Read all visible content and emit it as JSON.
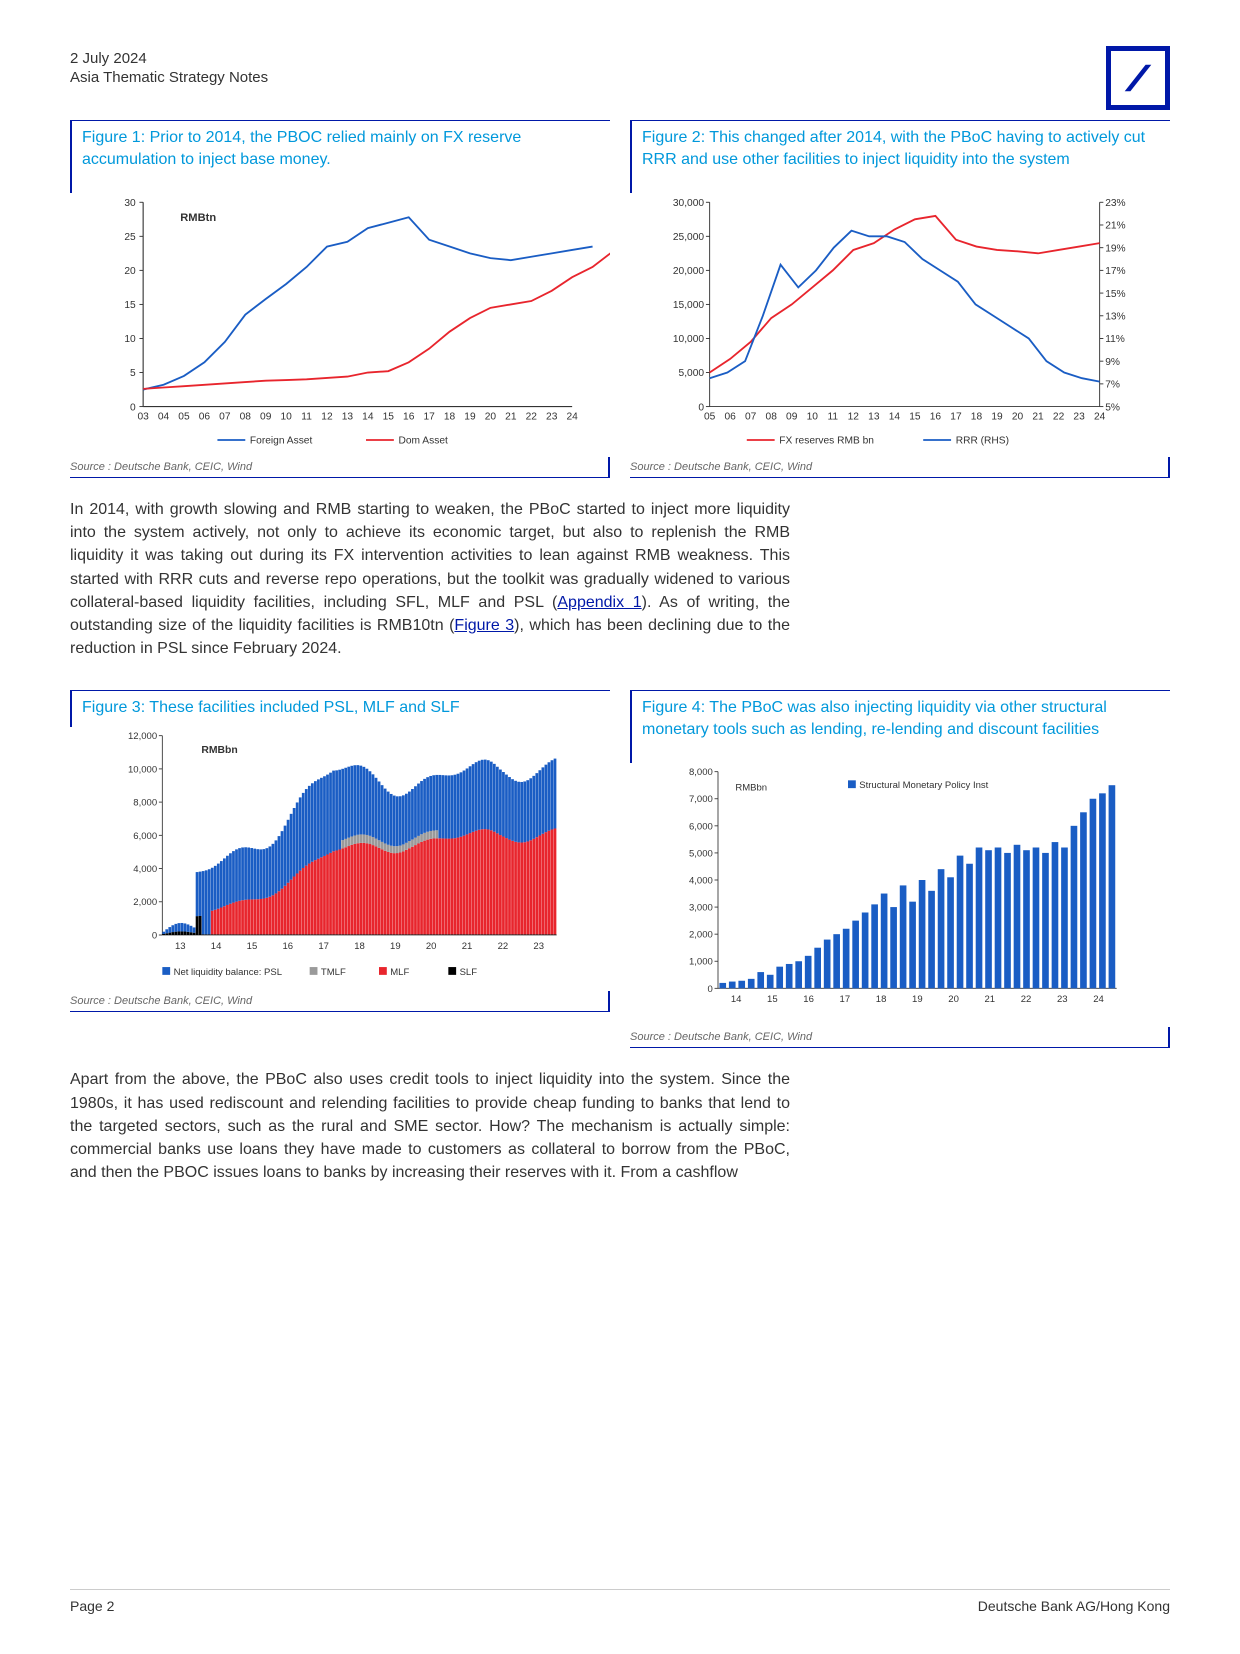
{
  "header": {
    "date": "2 July 2024",
    "subtitle": "Asia Thematic Strategy Notes"
  },
  "footer": {
    "page": "Page 2",
    "entity": "Deutsche Bank AG/Hong Kong"
  },
  "paragraph1": "In 2014, with growth slowing and RMB starting to weaken, the PBoC started to inject more liquidity into the system actively, not only to achieve its economic target, but also to replenish the RMB liquidity it was taking out during its FX intervention activities to lean against RMB weakness. This started with RRR cuts and reverse repo operations, but the toolkit was gradually widened to various collateral-based liquidity facilities, including SFL, MLF and PSL (",
  "paragraph1_link1": "Appendix 1",
  "paragraph1_mid": "). As of writing, the outstanding size of the liquidity facilities is RMB10tn (",
  "paragraph1_link2": "Figure 3",
  "paragraph1_end": "), which has been declining due to the reduction in PSL since February 2024.",
  "paragraph2": "Apart from the above, the PBoC also uses credit tools to inject liquidity into the system. Since the 1980s, it has used rediscount and relending facilities to provide cheap funding to banks that lend to the targeted sectors, such as the rural and SME sector. How? The mechanism is actually simple: commercial banks use loans they have made to customers as collateral to borrow from the PBoC, and then the PBOC issues loans to banks by increasing their reserves with it. From a cashflow",
  "source_label": "Source : Deutsche Bank, CEIC, Wind",
  "colors": {
    "blue_line": "#1a5dc4",
    "red_line": "#e8252d",
    "axis": "#333333",
    "grid": "#cccccc",
    "db_blue": "#0018a8",
    "cyan": "#0098db",
    "bar_blue": "#1a5dc4",
    "bar_red": "#e8252d",
    "bar_grey": "#9a9a9a",
    "bar_black": "#000000"
  },
  "figure1": {
    "title": "Figure 1: Prior to 2014, the PBOC relied mainly on FX reserve accumulation to inject base money.",
    "unit": "RMBtn",
    "ylim": [
      0,
      30
    ],
    "ytick_step": 5,
    "x_labels": [
      "03",
      "04",
      "05",
      "06",
      "07",
      "08",
      "09",
      "10",
      "11",
      "12",
      "13",
      "14",
      "15",
      "16",
      "17",
      "18",
      "19",
      "20",
      "21",
      "22",
      "23",
      "24"
    ],
    "legend": [
      "Foreign Asset",
      "Dom Asset"
    ],
    "series_foreign": [
      2.5,
      3.2,
      4.5,
      6.5,
      9.5,
      13.5,
      15.8,
      18.0,
      20.5,
      23.5,
      24.2,
      26.2,
      27.0,
      27.8,
      24.5,
      23.5,
      22.5,
      21.8,
      21.5,
      22.0,
      22.5,
      23.0,
      23.5
    ],
    "series_dom": [
      2.6,
      2.8,
      3.0,
      3.2,
      3.4,
      3.6,
      3.8,
      3.9,
      4.0,
      4.2,
      4.4,
      5.0,
      5.2,
      6.5,
      8.5,
      11.0,
      13.0,
      14.5,
      15.0,
      15.5,
      17.0,
      19.0,
      20.5,
      22.8
    ]
  },
  "figure2": {
    "title": "Figure 2: This changed after 2014, with the PBoC having to actively cut RRR and use other facilities to inject liquidity into the system",
    "ylim_left": [
      0,
      30000
    ],
    "ytick_left_step": 5000,
    "ylim_right": [
      5,
      23
    ],
    "ytick_right_step": 2,
    "x_labels": [
      "05",
      "06",
      "07",
      "08",
      "09",
      "10",
      "11",
      "12",
      "13",
      "14",
      "15",
      "16",
      "17",
      "18",
      "19",
      "20",
      "21",
      "22",
      "23",
      "24"
    ],
    "legend": [
      "FX reserves RMB bn",
      "RRR (RHS)"
    ],
    "fx": [
      5000,
      7000,
      9500,
      13000,
      15000,
      17500,
      20000,
      23000,
      24000,
      26000,
      27500,
      28000,
      24500,
      23500,
      23000,
      22800,
      22500,
      23000,
      23500,
      24000
    ],
    "rrr": [
      7.5,
      8.0,
      9.0,
      13.0,
      17.5,
      15.5,
      17.0,
      19.0,
      20.5,
      20.0,
      20.0,
      19.5,
      18.0,
      17.0,
      16.0,
      14.0,
      13.0,
      12.0,
      11.0,
      9.0,
      8.0,
      7.5,
      7.2
    ]
  },
  "figure3": {
    "title": "Figure 3: These facilities included PSL, MLF and SLF",
    "unit": "RMBbn",
    "ylim": [
      0,
      12000
    ],
    "ytick_step": 2000,
    "x_labels": [
      "13",
      "14",
      "15",
      "16",
      "17",
      "18",
      "19",
      "20",
      "21",
      "22",
      "23"
    ],
    "legend": [
      "Net liquidity balance: PSL",
      "TMLF",
      "MLF",
      "SLF"
    ],
    "n": 130,
    "data_shape": "stacked-bars"
  },
  "figure4": {
    "title": "Figure 4: The PBoC was also injecting liquidity via other structural monetary tools such as lending, re-lending and discount facilities",
    "unit": "RMBbn",
    "legend_label": "Structural Monetary Policy Inst",
    "ylim": [
      0,
      8000
    ],
    "ytick_step": 1000,
    "x_labels": [
      "14",
      "15",
      "16",
      "17",
      "18",
      "19",
      "20",
      "21",
      "22",
      "23",
      "24"
    ],
    "bars": [
      200,
      250,
      280,
      350,
      600,
      500,
      800,
      900,
      1000,
      1200,
      1500,
      1800,
      2000,
      2200,
      2500,
      2800,
      3100,
      3500,
      3000,
      3800,
      3200,
      4000,
      3600,
      4400,
      4100,
      4900,
      4600,
      5200,
      5100,
      5200,
      5000,
      5300,
      5100,
      5200,
      5000,
      5400,
      5200,
      6000,
      6500,
      7000,
      7200,
      7500
    ]
  }
}
